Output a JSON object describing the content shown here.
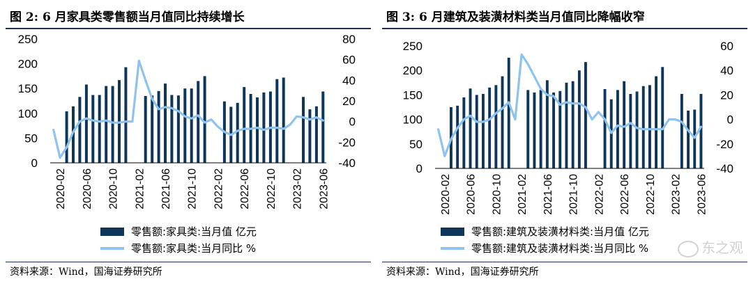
{
  "panels": [
    {
      "title": "图 2:  6 月家具类零售额当月值同比持续增长",
      "source": "资料来源：Wind，国海证券研究所",
      "legend": {
        "bar_label": "零售额:家具类:当月值 亿元",
        "line_label": "零售额:家具类:当月同比 %"
      }
    },
    {
      "title": "图 3:  6 月建筑及装潢材料类当月值同比降幅收窄",
      "source": "资料来源：Wind，国海证券研究所",
      "legend": {
        "bar_label": "零售额:建筑及装潢材料类:当月值 亿元",
        "line_label": "零售额:建筑及装潢材料类:当月同比 %"
      },
      "watermark": "东之观"
    }
  ],
  "colors": {
    "bar": "#0e3658",
    "line": "#8fc3ee",
    "rule": "#1b2f4e"
  },
  "chart_data": [
    {
      "type": "bar",
      "x": [
        "2020-01",
        "2020-02",
        "2020-03",
        "2020-04",
        "2020-05",
        "2020-06",
        "2020-07",
        "2020-08",
        "2020-09",
        "2020-10",
        "2020-11",
        "2020-12",
        "2021-01",
        "2021-02",
        "2021-03",
        "2021-04",
        "2021-05",
        "2021-06",
        "2021-07",
        "2021-08",
        "2021-09",
        "2021-10",
        "2021-11",
        "2021-12",
        "2022-01",
        "2022-02",
        "2022-03",
        "2022-04",
        "2022-05",
        "2022-06",
        "2022-07",
        "2022-08",
        "2022-09",
        "2022-10",
        "2022-11",
        "2022-12",
        "2023-01",
        "2023-02",
        "2023-03",
        "2023-04",
        "2023-05",
        "2023-06"
      ],
      "xticks": [
        "2020-02",
        "2020-06",
        "2020-10",
        "2021-02",
        "2021-06",
        "2021-10",
        "2022-02",
        "2022-06",
        "2022-10",
        "2023-02",
        "2023-06"
      ],
      "series": [
        {
          "name": "零售额:家具类:当月值 亿元",
          "axis": "left",
          "values": [
            null,
            null,
            104,
            114,
            133,
            158,
            137,
            137,
            155,
            155,
            167,
            193,
            null,
            null,
            135,
            136,
            145,
            160,
            137,
            136,
            150,
            150,
            165,
            175,
            null,
            null,
            124,
            113,
            121,
            153,
            139,
            132,
            142,
            144,
            169,
            172,
            null,
            null,
            133,
            108,
            114,
            144
          ]
        },
        {
          "name": "零售额:家具类:当月同比 %",
          "axis": "right",
          "type": "line",
          "values": [
            -8,
            -35,
            -25,
            -10,
            0,
            3,
            1,
            0,
            1,
            -1,
            -1,
            0,
            0,
            59,
            40,
            22,
            12,
            14,
            13,
            10,
            5,
            3,
            6,
            -1,
            2,
            -5,
            -10,
            -13,
            -9,
            -7,
            -7,
            -6,
            -8,
            -6,
            -6,
            -7,
            -3,
            5,
            4,
            2,
            4,
            1
          ]
        }
      ],
      "ylim_left": [
        0,
        250
      ],
      "yticks_left": [
        0,
        50,
        100,
        150,
        200,
        250
      ],
      "ylim_right": [
        -40,
        80
      ],
      "yticks_right": [
        -40,
        -20,
        0,
        20,
        40,
        60,
        80
      ],
      "legend_position": "bottom"
    },
    {
      "type": "bar",
      "x": [
        "2020-01",
        "2020-02",
        "2020-03",
        "2020-04",
        "2020-05",
        "2020-06",
        "2020-07",
        "2020-08",
        "2020-09",
        "2020-10",
        "2020-11",
        "2020-12",
        "2021-01",
        "2021-02",
        "2021-03",
        "2021-04",
        "2021-05",
        "2021-06",
        "2021-07",
        "2021-08",
        "2021-09",
        "2021-10",
        "2021-11",
        "2021-12",
        "2022-01",
        "2022-02",
        "2022-03",
        "2022-04",
        "2022-05",
        "2022-06",
        "2022-07",
        "2022-08",
        "2022-09",
        "2022-10",
        "2022-11",
        "2022-12",
        "2023-01",
        "2023-02",
        "2023-03",
        "2023-04",
        "2023-05",
        "2023-06"
      ],
      "xticks": [
        "2020-02",
        "2020-06",
        "2020-10",
        "2021-02",
        "2021-06",
        "2021-10",
        "2022-02",
        "2022-06",
        "2022-10",
        "2023-02",
        "2023-06"
      ],
      "series": [
        {
          "name": "零售额:建筑及装潢材料类:当月值 亿元",
          "axis": "left",
          "values": [
            null,
            null,
            125,
            128,
            145,
            163,
            150,
            152,
            165,
            170,
            188,
            226,
            null,
            null,
            160,
            155,
            160,
            180,
            155,
            158,
            175,
            178,
            200,
            217,
            null,
            null,
            162,
            141,
            160,
            178,
            152,
            157,
            168,
            170,
            188,
            207,
            null,
            null,
            152,
            118,
            120,
            152
          ]
        },
        {
          "name": "零售额:建筑及装潢材料类:当月同比 %",
          "axis": "right",
          "type": "line",
          "values": [
            -8,
            -30,
            -16,
            -7,
            0,
            3,
            -2,
            -2,
            0,
            5,
            9,
            14,
            0,
            53,
            45,
            35,
            25,
            20,
            19,
            12,
            14,
            13,
            13,
            10,
            0,
            6,
            0,
            -11,
            -5,
            -6,
            -3,
            -7,
            -8,
            -8,
            -8,
            -8,
            0,
            0,
            -2,
            -9,
            -15,
            -6
          ]
        }
      ],
      "ylim_left": [
        0,
        250
      ],
      "yticks_left": [
        0,
        50,
        100,
        150,
        200,
        250
      ],
      "ylim_right": [
        -40,
        60
      ],
      "yticks_right": [
        -40,
        -20,
        0,
        20,
        40,
        60
      ],
      "legend_position": "bottom"
    }
  ]
}
